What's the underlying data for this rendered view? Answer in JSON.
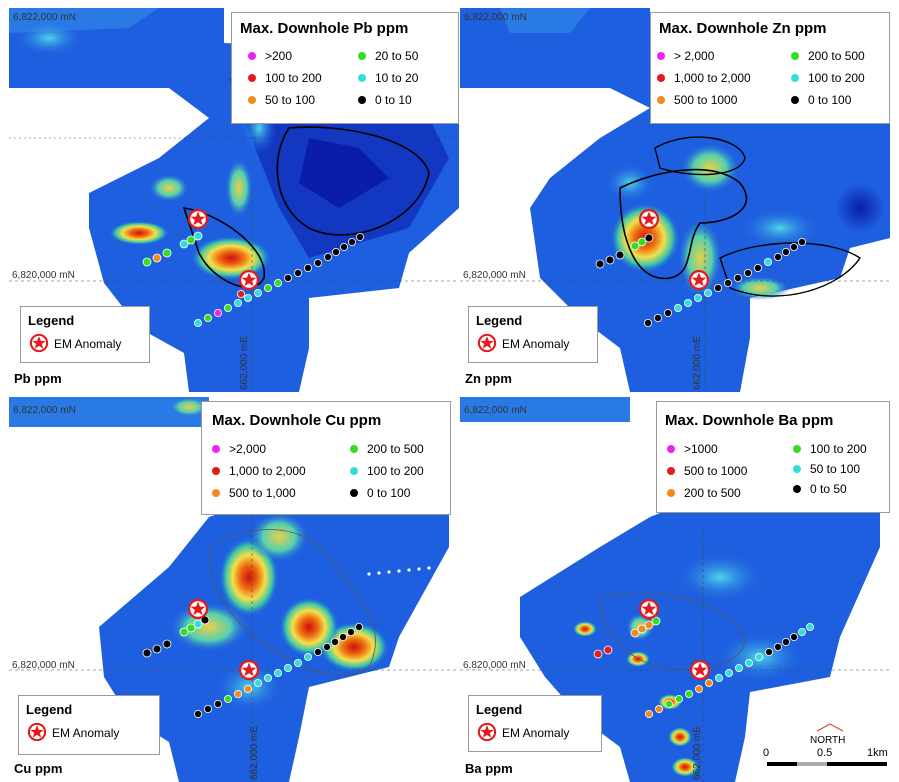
{
  "coords": {
    "north_top": "6,822,000 mN",
    "north_mid": "6,820,000 mN",
    "east": "662,000 mE"
  },
  "em_legend": {
    "title": "Legend",
    "label": "EM Anomaly",
    "icon": "star-in-circle-icon"
  },
  "panels": [
    {
      "id": "pb",
      "corner_label": "Pb ppm",
      "legend_title": "Max. Downhole Pb ppm",
      "classes": [
        {
          "label": ">200",
          "color": "#ee22ee"
        },
        {
          "label": "100 to 200",
          "color": "#e41a1c"
        },
        {
          "label": "50 to 100",
          "color": "#f28a1e"
        },
        {
          "label": "20 to 50",
          "color": "#33dd22"
        },
        {
          "label": "10 to 20",
          "color": "#33dddd"
        },
        {
          "label": "0 to 10",
          "color": "#000000"
        }
      ]
    },
    {
      "id": "zn",
      "corner_label": "Zn ppm",
      "legend_title": "Max. Downhole Zn ppm",
      "classes": [
        {
          "label": "> 2,000",
          "color": "#ee22ee"
        },
        {
          "label": "1,000 to 2,000",
          "color": "#e41a1c"
        },
        {
          "label": "500 to  1000",
          "color": "#f28a1e"
        },
        {
          "label": "200 to 500",
          "color": "#33dd22"
        },
        {
          "label": "100 to 200",
          "color": "#33dddd"
        },
        {
          "label": "0 to 100",
          "color": "#000000"
        }
      ]
    },
    {
      "id": "cu",
      "corner_label": "Cu ppm",
      "legend_title": "Max. Downhole Cu ppm",
      "classes": [
        {
          "label": ">2,000",
          "color": "#ee22ee"
        },
        {
          "label": "1,000 to 2,000",
          "color": "#e41a1c"
        },
        {
          "label": "500 to 1,000",
          "color": "#f28a1e"
        },
        {
          "label": "200 to 500",
          "color": "#33dd22"
        },
        {
          "label": "100 to 200",
          "color": "#33dddd"
        },
        {
          "label": "0 to 100",
          "color": "#000000"
        }
      ]
    },
    {
      "id": "ba",
      "corner_label": "Ba ppm",
      "legend_title": "Max. Downhole Ba ppm",
      "classes": [
        {
          "label": ">1000",
          "color": "#ee22ee"
        },
        {
          "label": "500 to 1000",
          "color": "#e41a1c"
        },
        {
          "label": "200 to   500",
          "color": "#f28a1e"
        },
        {
          "label": "100 to 200",
          "color": "#33dd22"
        },
        {
          "label": "50 to 100",
          "color": "#33dddd"
        },
        {
          "label": "0 to   50",
          "color": "#000000"
        }
      ]
    }
  ],
  "scalebar": {
    "north_label": "NORTH",
    "tick_0": "0",
    "tick_1": "0.5",
    "tick_2": "1km"
  }
}
